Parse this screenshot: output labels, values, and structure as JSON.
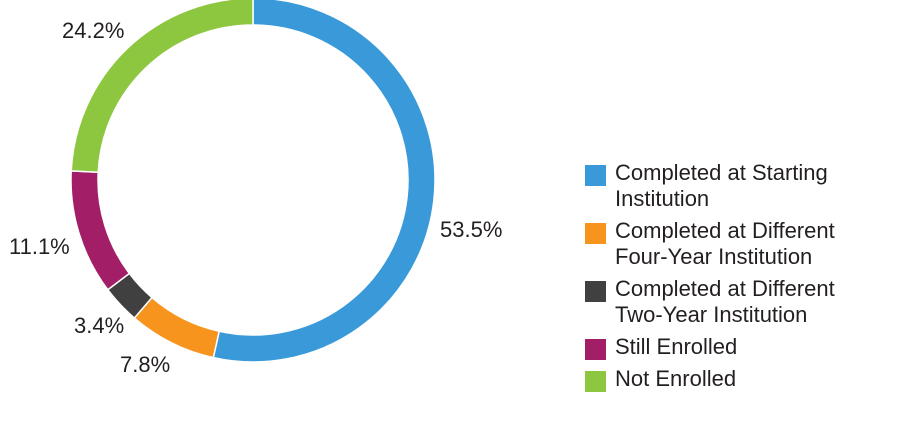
{
  "chart_data": {
    "type": "pie",
    "variant": "donut",
    "title": "",
    "legend_position": "right",
    "slices": [
      {
        "name": "Completed at Starting Institution",
        "value": 53.5,
        "label": "53.5%",
        "color": "#3a9ad9"
      },
      {
        "name": "Completed at Different Four-Year Institution",
        "value": 7.8,
        "label": "7.8%",
        "color": "#f7941d"
      },
      {
        "name": "Completed at Different Two-Year Institution",
        "value": 3.4,
        "label": "3.4%",
        "color": "#404040"
      },
      {
        "name": "Still Enrolled",
        "value": 11.1,
        "label": "11.1%",
        "color": "#a21f67"
      },
      {
        "name": "Not Enrolled",
        "value": 24.2,
        "label": "24.2%",
        "color": "#8dc63f"
      }
    ]
  },
  "legend": {
    "items": [
      {
        "label": "Completed at Starting Institution",
        "color": "#3a9ad9"
      },
      {
        "label": "Completed at Different Four-Year Institution",
        "color": "#f7941d"
      },
      {
        "label": "Completed at Different Two-Year Institution",
        "color": "#404040"
      },
      {
        "label": "Still Enrolled",
        "color": "#a21f67"
      },
      {
        "label": "Not Enrolled",
        "color": "#8dc63f"
      }
    ]
  }
}
